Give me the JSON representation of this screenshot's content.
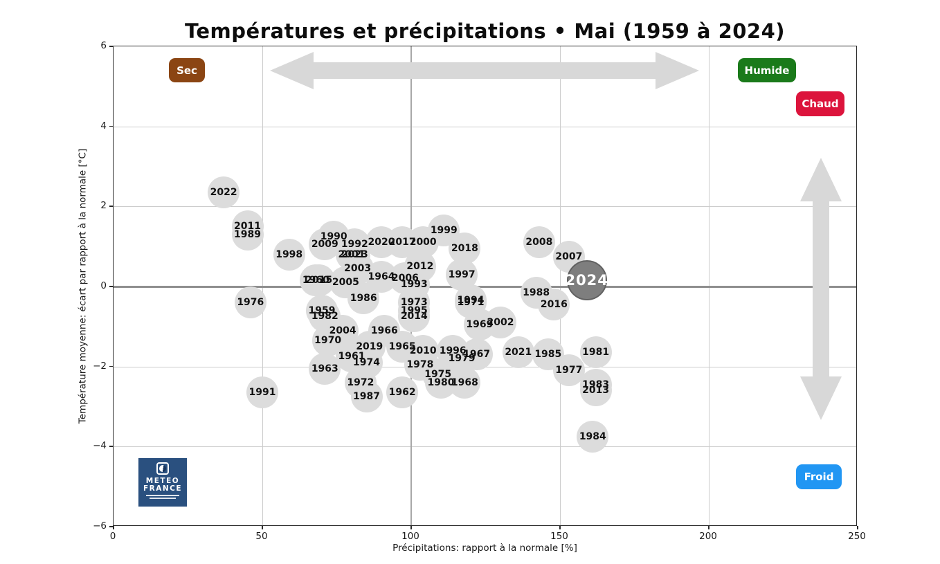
{
  "header": {
    "title": "Températures et précipitations • Mai (1959 à 2024)"
  },
  "quadrant_badges": [
    {
      "name": "sec",
      "label": "Sec",
      "color": "#8b4513"
    },
    {
      "name": "humide",
      "label": "Humide",
      "color": "#1a7a1a"
    },
    {
      "name": "chaud",
      "label": "Chaud",
      "color": "#dc143c"
    },
    {
      "name": "froid",
      "label": "Froid",
      "color": "#2196f3"
    }
  ],
  "logo": {
    "line1": "METEO",
    "line2": "FRANCE"
  },
  "chart_data": {
    "type": "scatter",
    "title": "Températures et précipitations • Mai (1959 à 2024)",
    "xlabel": "Précipitations: rapport à la normale [%]",
    "ylabel": "Température moyenne: écart par rapport à la normale [°C]",
    "xlim": [
      0,
      250
    ],
    "ylim": [
      -6,
      6
    ],
    "x_ticks": [
      0,
      50,
      100,
      150,
      200,
      250
    ],
    "y_ticks": [
      6,
      4,
      2,
      0,
      -2,
      -4,
      -6
    ],
    "grid": true,
    "reference_lines": {
      "x": 100,
      "y": 0
    },
    "legend_position": "none",
    "highlight_year": "2024",
    "bubble_color": "#dcdcdc",
    "highlight_color": "#7e7e7e",
    "points": [
      {
        "year": "1959",
        "x": 70,
        "y": -0.6
      },
      {
        "year": "1960",
        "x": 68,
        "y": 0.15
      },
      {
        "year": "1961",
        "x": 80,
        "y": -1.75
      },
      {
        "year": "1962",
        "x": 97,
        "y": -2.65
      },
      {
        "year": "1963",
        "x": 71,
        "y": -2.05
      },
      {
        "year": "1964",
        "x": 90,
        "y": 0.25
      },
      {
        "year": "1965",
        "x": 97,
        "y": -1.5
      },
      {
        "year": "1966",
        "x": 91,
        "y": -1.1
      },
      {
        "year": "1967",
        "x": 122,
        "y": -1.7
      },
      {
        "year": "1968",
        "x": 118,
        "y": -2.4
      },
      {
        "year": "1969",
        "x": 123,
        "y": -0.95
      },
      {
        "year": "1970",
        "x": 72,
        "y": -1.35
      },
      {
        "year": "1971",
        "x": 120,
        "y": -0.4
      },
      {
        "year": "1972",
        "x": 83,
        "y": -2.4
      },
      {
        "year": "1973",
        "x": 101,
        "y": -0.4
      },
      {
        "year": "1974",
        "x": 85,
        "y": -1.9
      },
      {
        "year": "1975",
        "x": 109,
        "y": -2.2
      },
      {
        "year": "1976",
        "x": 46,
        "y": -0.4
      },
      {
        "year": "1977",
        "x": 153,
        "y": -2.1
      },
      {
        "year": "1978",
        "x": 103,
        "y": -1.95
      },
      {
        "year": "1979",
        "x": 117,
        "y": -1.8
      },
      {
        "year": "1980",
        "x": 110,
        "y": -2.4
      },
      {
        "year": "1981",
        "x": 162,
        "y": -1.65
      },
      {
        "year": "1982",
        "x": 71,
        "y": -0.75
      },
      {
        "year": "1983",
        "x": 162,
        "y": -2.45
      },
      {
        "year": "1984",
        "x": 161,
        "y": -3.75
      },
      {
        "year": "1985",
        "x": 146,
        "y": -1.7
      },
      {
        "year": "1986",
        "x": 84,
        "y": -0.3
      },
      {
        "year": "1987",
        "x": 85,
        "y": -2.75
      },
      {
        "year": "1988",
        "x": 142,
        "y": -0.15
      },
      {
        "year": "1989",
        "x": 45,
        "y": 1.3
      },
      {
        "year": "1990",
        "x": 74,
        "y": 1.25
      },
      {
        "year": "1991",
        "x": 50,
        "y": -2.65
      },
      {
        "year": "1992",
        "x": 81,
        "y": 1.05
      },
      {
        "year": "1993",
        "x": 101,
        "y": 0.05
      },
      {
        "year": "1994",
        "x": 120,
        "y": -0.35
      },
      {
        "year": "1995",
        "x": 101,
        "y": -0.6
      },
      {
        "year": "1996",
        "x": 114,
        "y": -1.6
      },
      {
        "year": "1997",
        "x": 117,
        "y": 0.3
      },
      {
        "year": "1998",
        "x": 59,
        "y": 0.8
      },
      {
        "year": "1999",
        "x": 111,
        "y": 1.4
      },
      {
        "year": "2000",
        "x": 104,
        "y": 1.1
      },
      {
        "year": "2001",
        "x": 80,
        "y": 0.8
      },
      {
        "year": "2002",
        "x": 130,
        "y": -0.9
      },
      {
        "year": "2003",
        "x": 82,
        "y": 0.45
      },
      {
        "year": "2004",
        "x": 77,
        "y": -1.1
      },
      {
        "year": "2005",
        "x": 78,
        "y": 0.1
      },
      {
        "year": "2006",
        "x": 98,
        "y": 0.2
      },
      {
        "year": "2007",
        "x": 153,
        "y": 0.75
      },
      {
        "year": "2008",
        "x": 143,
        "y": 1.1
      },
      {
        "year": "2009",
        "x": 71,
        "y": 1.05
      },
      {
        "year": "2010",
        "x": 104,
        "y": -1.6
      },
      {
        "year": "2011",
        "x": 45,
        "y": 1.5
      },
      {
        "year": "2012",
        "x": 103,
        "y": 0.5
      },
      {
        "year": "2013",
        "x": 162,
        "y": -2.6
      },
      {
        "year": "2014",
        "x": 101,
        "y": -0.75
      },
      {
        "year": "2015",
        "x": 69,
        "y": 0.15
      },
      {
        "year": "2016",
        "x": 148,
        "y": -0.45
      },
      {
        "year": "2017",
        "x": 97,
        "y": 1.1
      },
      {
        "year": "2018",
        "x": 118,
        "y": 0.95
      },
      {
        "year": "2019",
        "x": 86,
        "y": -1.5
      },
      {
        "year": "2020",
        "x": 90,
        "y": 1.1
      },
      {
        "year": "2021",
        "x": 136,
        "y": -1.65
      },
      {
        "year": "2022",
        "x": 37,
        "y": 2.35
      },
      {
        "year": "2023",
        "x": 81,
        "y": 0.8
      },
      {
        "year": "2024",
        "x": 159,
        "y": 0.15
      }
    ]
  }
}
